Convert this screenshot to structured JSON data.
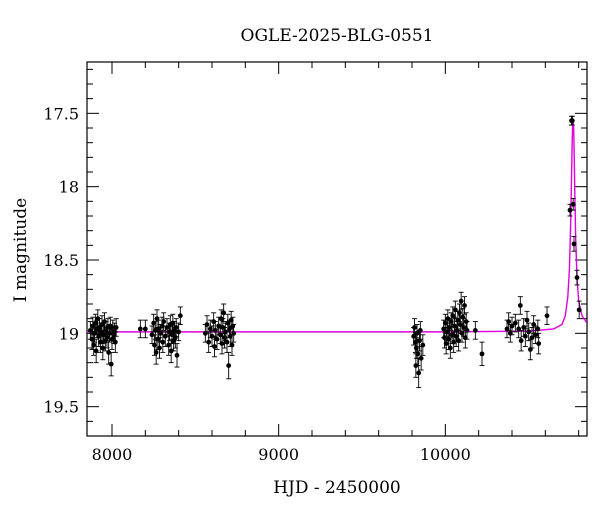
{
  "chart_data": {
    "type": "scatter",
    "title": "OGLE-2025-BLG-0551",
    "xlabel": "HJD - 2450000",
    "ylabel": "I magnitude",
    "xlim": [
      7850,
      10850
    ],
    "ylim": [
      19.7,
      17.15
    ],
    "y_inverted": true,
    "grid": false,
    "xticks": [
      8000,
      9000,
      10000
    ],
    "yticks": [
      17.5,
      18,
      18.5,
      19,
      19.5
    ],
    "xtick_labels": [
      "8000",
      "9000",
      "10000"
    ],
    "ytick_labels": [
      "17.5",
      "18",
      "18.5",
      "19",
      "19.5"
    ],
    "colors": {
      "points": "#000000",
      "model": "#e000e0"
    },
    "model": {
      "name": "",
      "baseline": 18.99,
      "x": [
        7850,
        9000,
        10000,
        10500,
        10650,
        10700,
        10720,
        10735,
        10745,
        10752,
        10757,
        10761,
        10764,
        10767,
        10770,
        10773,
        10777,
        10782,
        10790,
        10800,
        10820,
        10850
      ],
      "y": [
        18.99,
        18.99,
        18.99,
        18.985,
        18.97,
        18.94,
        18.88,
        18.75,
        18.55,
        18.25,
        17.95,
        17.7,
        17.57,
        17.55,
        17.6,
        17.78,
        18.05,
        18.35,
        18.62,
        18.78,
        18.88,
        18.93
      ]
    },
    "series": [
      {
        "name": "",
        "points": [
          {
            "x": 7870,
            "y": 18.98,
            "err": 0.06
          },
          {
            "x": 7880,
            "y": 19.04,
            "err": 0.07
          },
          {
            "x": 7885,
            "y": 18.95,
            "err": 0.06
          },
          {
            "x": 7890,
            "y": 19.08,
            "err": 0.07
          },
          {
            "x": 7895,
            "y": 19.0,
            "err": 0.06
          },
          {
            "x": 7900,
            "y": 18.93,
            "err": 0.06
          },
          {
            "x": 7905,
            "y": 19.12,
            "err": 0.08
          },
          {
            "x": 7910,
            "y": 18.97,
            "err": 0.06
          },
          {
            "x": 7915,
            "y": 18.9,
            "err": 0.06
          },
          {
            "x": 7920,
            "y": 19.02,
            "err": 0.07
          },
          {
            "x": 7925,
            "y": 18.96,
            "err": 0.06
          },
          {
            "x": 7930,
            "y": 19.06,
            "err": 0.07
          },
          {
            "x": 7935,
            "y": 18.99,
            "err": 0.06
          },
          {
            "x": 7940,
            "y": 18.94,
            "err": 0.06
          },
          {
            "x": 7945,
            "y": 19.1,
            "err": 0.08
          },
          {
            "x": 7950,
            "y": 19.01,
            "err": 0.06
          },
          {
            "x": 7955,
            "y": 18.92,
            "err": 0.06
          },
          {
            "x": 7960,
            "y": 19.05,
            "err": 0.07
          },
          {
            "x": 7965,
            "y": 18.98,
            "err": 0.06
          },
          {
            "x": 7970,
            "y": 19.03,
            "err": 0.07
          },
          {
            "x": 7975,
            "y": 18.96,
            "err": 0.06
          },
          {
            "x": 7980,
            "y": 19.13,
            "err": 0.08
          },
          {
            "x": 7985,
            "y": 19.0,
            "err": 0.06
          },
          {
            "x": 7990,
            "y": 18.95,
            "err": 0.06
          },
          {
            "x": 7995,
            "y": 19.21,
            "err": 0.08
          },
          {
            "x": 8000,
            "y": 19.04,
            "err": 0.07
          },
          {
            "x": 8005,
            "y": 18.97,
            "err": 0.06
          },
          {
            "x": 8010,
            "y": 19.01,
            "err": 0.06
          },
          {
            "x": 8015,
            "y": 18.99,
            "err": 0.06
          },
          {
            "x": 8020,
            "y": 19.06,
            "err": 0.07
          },
          {
            "x": 8025,
            "y": 18.96,
            "err": 0.06
          },
          {
            "x": 8170,
            "y": 18.97,
            "err": 0.06
          },
          {
            "x": 8200,
            "y": 18.97,
            "err": 0.06
          },
          {
            "x": 8240,
            "y": 19.01,
            "err": 0.06
          },
          {
            "x": 8250,
            "y": 18.93,
            "err": 0.06
          },
          {
            "x": 8255,
            "y": 19.08,
            "err": 0.07
          },
          {
            "x": 8260,
            "y": 18.98,
            "err": 0.06
          },
          {
            "x": 8265,
            "y": 19.13,
            "err": 0.08
          },
          {
            "x": 8270,
            "y": 18.9,
            "err": 0.06
          },
          {
            "x": 8275,
            "y": 19.04,
            "err": 0.07
          },
          {
            "x": 8280,
            "y": 18.97,
            "err": 0.06
          },
          {
            "x": 8285,
            "y": 19.1,
            "err": 0.07
          },
          {
            "x": 8290,
            "y": 19.0,
            "err": 0.06
          },
          {
            "x": 8300,
            "y": 18.95,
            "err": 0.06
          },
          {
            "x": 8305,
            "y": 19.06,
            "err": 0.07
          },
          {
            "x": 8310,
            "y": 18.92,
            "err": 0.06
          },
          {
            "x": 8320,
            "y": 19.02,
            "err": 0.07
          },
          {
            "x": 8330,
            "y": 18.96,
            "err": 0.06
          },
          {
            "x": 8340,
            "y": 19.08,
            "err": 0.07
          },
          {
            "x": 8345,
            "y": 18.99,
            "err": 0.06
          },
          {
            "x": 8350,
            "y": 18.94,
            "err": 0.06
          },
          {
            "x": 8355,
            "y": 19.12,
            "err": 0.08
          },
          {
            "x": 8360,
            "y": 19.01,
            "err": 0.06
          },
          {
            "x": 8365,
            "y": 18.93,
            "err": 0.06
          },
          {
            "x": 8370,
            "y": 19.05,
            "err": 0.07
          },
          {
            "x": 8375,
            "y": 18.98,
            "err": 0.06
          },
          {
            "x": 8380,
            "y": 19.03,
            "err": 0.07
          },
          {
            "x": 8385,
            "y": 18.96,
            "err": 0.06
          },
          {
            "x": 8390,
            "y": 19.15,
            "err": 0.08
          },
          {
            "x": 8400,
            "y": 18.99,
            "err": 0.06
          },
          {
            "x": 8410,
            "y": 18.88,
            "err": 0.06
          },
          {
            "x": 8560,
            "y": 19.0,
            "err": 0.06
          },
          {
            "x": 8570,
            "y": 18.94,
            "err": 0.06
          },
          {
            "x": 8580,
            "y": 19.06,
            "err": 0.07
          },
          {
            "x": 8590,
            "y": 18.97,
            "err": 0.06
          },
          {
            "x": 8600,
            "y": 19.02,
            "err": 0.07
          },
          {
            "x": 8610,
            "y": 18.92,
            "err": 0.06
          },
          {
            "x": 8615,
            "y": 19.09,
            "err": 0.07
          },
          {
            "x": 8620,
            "y": 18.98,
            "err": 0.06
          },
          {
            "x": 8630,
            "y": 19.04,
            "err": 0.07
          },
          {
            "x": 8640,
            "y": 18.95,
            "err": 0.06
          },
          {
            "x": 8650,
            "y": 19.01,
            "err": 0.06
          },
          {
            "x": 8655,
            "y": 18.9,
            "err": 0.06
          },
          {
            "x": 8660,
            "y": 19.07,
            "err": 0.07
          },
          {
            "x": 8665,
            "y": 18.96,
            "err": 0.06
          },
          {
            "x": 8670,
            "y": 18.86,
            "err": 0.06
          },
          {
            "x": 8675,
            "y": 19.03,
            "err": 0.07
          },
          {
            "x": 8680,
            "y": 18.99,
            "err": 0.06
          },
          {
            "x": 8690,
            "y": 19.06,
            "err": 0.07
          },
          {
            "x": 8695,
            "y": 18.93,
            "err": 0.06
          },
          {
            "x": 8700,
            "y": 19.22,
            "err": 0.09
          },
          {
            "x": 8705,
            "y": 18.97,
            "err": 0.06
          },
          {
            "x": 8710,
            "y": 19.02,
            "err": 0.07
          },
          {
            "x": 8715,
            "y": 18.91,
            "err": 0.06
          },
          {
            "x": 8720,
            "y": 19.08,
            "err": 0.07
          },
          {
            "x": 8725,
            "y": 18.95,
            "err": 0.06
          },
          {
            "x": 8730,
            "y": 19.0,
            "err": 0.06
          },
          {
            "x": 9810,
            "y": 19.02,
            "err": 0.06
          },
          {
            "x": 9815,
            "y": 18.96,
            "err": 0.06
          },
          {
            "x": 9820,
            "y": 19.06,
            "err": 0.07
          },
          {
            "x": 9823,
            "y": 19.22,
            "err": 0.08
          },
          {
            "x": 9826,
            "y": 19.1,
            "err": 0.07
          },
          {
            "x": 9830,
            "y": 19.0,
            "err": 0.06
          },
          {
            "x": 9835,
            "y": 19.14,
            "err": 0.08
          },
          {
            "x": 9840,
            "y": 19.27,
            "err": 0.1
          },
          {
            "x": 9845,
            "y": 19.05,
            "err": 0.07
          },
          {
            "x": 9850,
            "y": 18.98,
            "err": 0.06
          },
          {
            "x": 9855,
            "y": 19.17,
            "err": 0.08
          },
          {
            "x": 9865,
            "y": 19.08,
            "err": 0.07
          },
          {
            "x": 9990,
            "y": 18.97,
            "err": 0.06
          },
          {
            "x": 9995,
            "y": 19.03,
            "err": 0.07
          },
          {
            "x": 10000,
            "y": 18.93,
            "err": 0.06
          },
          {
            "x": 10005,
            "y": 19.07,
            "err": 0.07
          },
          {
            "x": 10010,
            "y": 18.99,
            "err": 0.06
          },
          {
            "x": 10015,
            "y": 18.9,
            "err": 0.06
          },
          {
            "x": 10020,
            "y": 19.04,
            "err": 0.07
          },
          {
            "x": 10025,
            "y": 18.96,
            "err": 0.06
          },
          {
            "x": 10030,
            "y": 19.1,
            "err": 0.07
          },
          {
            "x": 10035,
            "y": 18.92,
            "err": 0.06
          },
          {
            "x": 10040,
            "y": 19.01,
            "err": 0.06
          },
          {
            "x": 10045,
            "y": 18.88,
            "err": 0.06
          },
          {
            "x": 10050,
            "y": 19.06,
            "err": 0.07
          },
          {
            "x": 10055,
            "y": 18.95,
            "err": 0.06
          },
          {
            "x": 10060,
            "y": 18.84,
            "err": 0.06
          },
          {
            "x": 10065,
            "y": 19.02,
            "err": 0.07
          },
          {
            "x": 10070,
            "y": 18.98,
            "err": 0.06
          },
          {
            "x": 10075,
            "y": 18.91,
            "err": 0.06
          },
          {
            "x": 10080,
            "y": 19.05,
            "err": 0.07
          },
          {
            "x": 10085,
            "y": 18.86,
            "err": 0.06
          },
          {
            "x": 10090,
            "y": 18.94,
            "err": 0.06
          },
          {
            "x": 10095,
            "y": 18.78,
            "err": 0.06
          },
          {
            "x": 10100,
            "y": 19.0,
            "err": 0.06
          },
          {
            "x": 10105,
            "y": 18.89,
            "err": 0.06
          },
          {
            "x": 10110,
            "y": 18.96,
            "err": 0.06
          },
          {
            "x": 10115,
            "y": 18.81,
            "err": 0.06
          },
          {
            "x": 10120,
            "y": 19.03,
            "err": 0.07
          },
          {
            "x": 10125,
            "y": 18.92,
            "err": 0.06
          },
          {
            "x": 10130,
            "y": 18.98,
            "err": 0.06
          },
          {
            "x": 10180,
            "y": 18.98,
            "err": 0.06
          },
          {
            "x": 10220,
            "y": 19.14,
            "err": 0.08
          },
          {
            "x": 10370,
            "y": 18.97,
            "err": 0.06
          },
          {
            "x": 10380,
            "y": 18.92,
            "err": 0.06
          },
          {
            "x": 10390,
            "y": 19.0,
            "err": 0.06
          },
          {
            "x": 10400,
            "y": 18.95,
            "err": 0.06
          },
          {
            "x": 10420,
            "y": 18.93,
            "err": 0.06
          },
          {
            "x": 10440,
            "y": 18.97,
            "err": 0.06
          },
          {
            "x": 10450,
            "y": 18.81,
            "err": 0.06
          },
          {
            "x": 10455,
            "y": 19.05,
            "err": 0.07
          },
          {
            "x": 10470,
            "y": 18.96,
            "err": 0.06
          },
          {
            "x": 10480,
            "y": 19.02,
            "err": 0.07
          },
          {
            "x": 10490,
            "y": 18.91,
            "err": 0.06
          },
          {
            "x": 10500,
            "y": 18.99,
            "err": 0.06
          },
          {
            "x": 10510,
            "y": 19.11,
            "err": 0.07
          },
          {
            "x": 10520,
            "y": 19.03,
            "err": 0.07
          },
          {
            "x": 10530,
            "y": 18.94,
            "err": 0.06
          },
          {
            "x": 10540,
            "y": 19.01,
            "err": 0.06
          },
          {
            "x": 10555,
            "y": 18.97,
            "err": 0.06
          },
          {
            "x": 10560,
            "y": 19.07,
            "err": 0.07
          },
          {
            "x": 10610,
            "y": 18.88,
            "err": 0.06
          },
          {
            "x": 10748,
            "y": 18.16,
            "err": 0.04
          },
          {
            "x": 10757,
            "y": 17.55,
            "err": 0.03
          },
          {
            "x": 10762,
            "y": 17.55,
            "err": 0.03
          },
          {
            "x": 10767,
            "y": 18.12,
            "err": 0.04
          },
          {
            "x": 10772,
            "y": 18.39,
            "err": 0.05
          },
          {
            "x": 10790,
            "y": 18.62,
            "err": 0.05
          },
          {
            "x": 10803,
            "y": 18.84,
            "err": 0.06
          }
        ]
      }
    ]
  }
}
